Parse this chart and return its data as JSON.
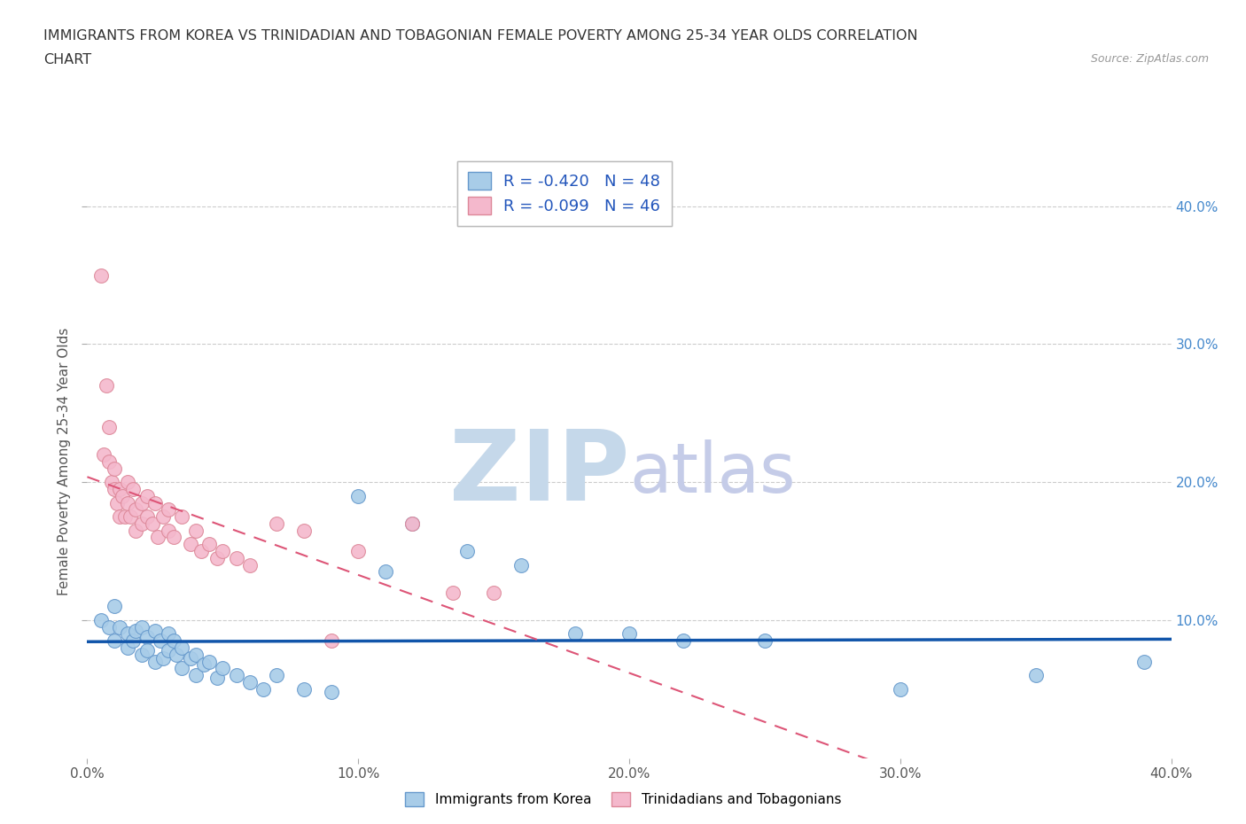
{
  "title_line1": "IMMIGRANTS FROM KOREA VS TRINIDADIAN AND TOBAGONIAN FEMALE POVERTY AMONG 25-34 YEAR OLDS CORRELATION",
  "title_line2": "CHART",
  "source": "Source: ZipAtlas.com",
  "ylabel": "Female Poverty Among 25-34 Year Olds",
  "xlim": [
    0.0,
    0.4
  ],
  "ylim": [
    0.0,
    0.43
  ],
  "xticks": [
    0.0,
    0.1,
    0.2,
    0.3,
    0.4
  ],
  "yticks": [
    0.1,
    0.2,
    0.3,
    0.4
  ],
  "ytick_labels": [
    "10.0%",
    "20.0%",
    "30.0%",
    "40.0%"
  ],
  "xtick_labels": [
    "0.0%",
    "10.0%",
    "20.0%",
    "30.0%",
    "40.0%"
  ],
  "korea_color": "#a8cce8",
  "korea_edge": "#6699cc",
  "tt_color": "#f4b8cc",
  "tt_edge": "#dd8899",
  "korea_R": -0.42,
  "korea_N": 48,
  "tt_R": -0.099,
  "tt_N": 46,
  "legend_label1": "Immigrants from Korea",
  "legend_label2": "Trinidadians and Tobagonians",
  "korea_scatter_x": [
    0.005,
    0.008,
    0.01,
    0.01,
    0.012,
    0.015,
    0.015,
    0.017,
    0.018,
    0.02,
    0.02,
    0.022,
    0.022,
    0.025,
    0.025,
    0.027,
    0.028,
    0.03,
    0.03,
    0.032,
    0.033,
    0.035,
    0.035,
    0.038,
    0.04,
    0.04,
    0.043,
    0.045,
    0.048,
    0.05,
    0.055,
    0.06,
    0.065,
    0.07,
    0.08,
    0.09,
    0.1,
    0.11,
    0.12,
    0.14,
    0.16,
    0.18,
    0.2,
    0.22,
    0.25,
    0.3,
    0.35,
    0.39
  ],
  "korea_scatter_y": [
    0.1,
    0.095,
    0.11,
    0.085,
    0.095,
    0.09,
    0.08,
    0.085,
    0.092,
    0.095,
    0.075,
    0.088,
    0.078,
    0.092,
    0.07,
    0.085,
    0.072,
    0.09,
    0.078,
    0.085,
    0.075,
    0.08,
    0.065,
    0.072,
    0.075,
    0.06,
    0.068,
    0.07,
    0.058,
    0.065,
    0.06,
    0.055,
    0.05,
    0.06,
    0.05,
    0.048,
    0.19,
    0.135,
    0.17,
    0.15,
    0.14,
    0.09,
    0.09,
    0.085,
    0.085,
    0.05,
    0.06,
    0.07
  ],
  "tt_scatter_x": [
    0.005,
    0.006,
    0.007,
    0.008,
    0.008,
    0.009,
    0.01,
    0.01,
    0.011,
    0.012,
    0.012,
    0.013,
    0.014,
    0.015,
    0.015,
    0.016,
    0.017,
    0.018,
    0.018,
    0.02,
    0.02,
    0.022,
    0.022,
    0.024,
    0.025,
    0.026,
    0.028,
    0.03,
    0.03,
    0.032,
    0.035,
    0.038,
    0.04,
    0.042,
    0.045,
    0.048,
    0.05,
    0.055,
    0.06,
    0.07,
    0.08,
    0.09,
    0.1,
    0.12,
    0.135,
    0.15
  ],
  "tt_scatter_y": [
    0.35,
    0.22,
    0.27,
    0.215,
    0.24,
    0.2,
    0.21,
    0.195,
    0.185,
    0.195,
    0.175,
    0.19,
    0.175,
    0.185,
    0.2,
    0.175,
    0.195,
    0.18,
    0.165,
    0.185,
    0.17,
    0.175,
    0.19,
    0.17,
    0.185,
    0.16,
    0.175,
    0.165,
    0.18,
    0.16,
    0.175,
    0.155,
    0.165,
    0.15,
    0.155,
    0.145,
    0.15,
    0.145,
    0.14,
    0.17,
    0.165,
    0.085,
    0.15,
    0.17,
    0.12,
    0.12
  ],
  "background_color": "#ffffff",
  "grid_color": "#cccccc",
  "title_color": "#333333",
  "axis_label_color": "#555555",
  "right_tick_color": "#4488cc",
  "watermark_zip_color": "#c5d8ea",
  "watermark_atlas_color": "#c5cce8"
}
